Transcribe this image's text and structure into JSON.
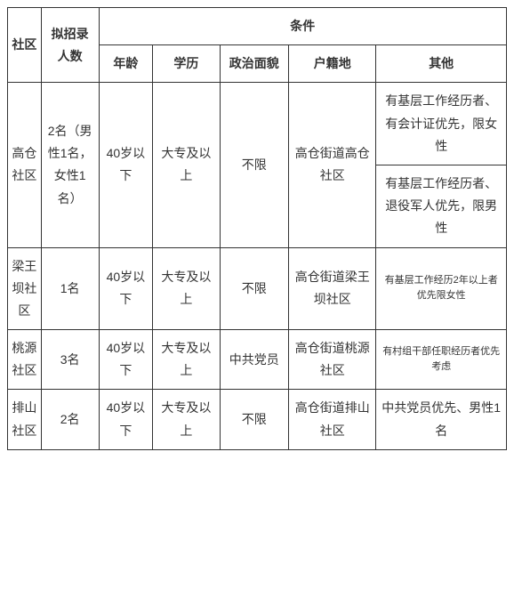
{
  "headers": {
    "community": "社区",
    "count": "拟招录人数",
    "conditions": "条件",
    "age": "年龄",
    "education": "学历",
    "political": "政治面貌",
    "residence": "户籍地",
    "other": "其他"
  },
  "rows": [
    {
      "community": "高仓社区",
      "count": "2名（男性1名，女性1名）",
      "age": "40岁以下",
      "education": "大专及以上",
      "political": "不限",
      "residence": "高仓街道高仓社区",
      "other1": "有基层工作经历者、有会计证优先，限女性",
      "other2": "有基层工作经历者、退役军人优先，限男性"
    },
    {
      "community": "梁王坝社区",
      "count": "1名",
      "age": "40岁以下",
      "education": "大专及以上",
      "political": "不限",
      "residence": "高仓街道梁王坝社区",
      "other": "有基层工作经历2年以上者优先限女性"
    },
    {
      "community": "桃源社区",
      "count": "3名",
      "age": "40岁以下",
      "education": "大专及以上",
      "political": "中共党员",
      "residence": "高仓街道桃源社区",
      "other": "有村组干部任职经历者优先考虑"
    },
    {
      "community": "排山社区",
      "count": "2名",
      "age": "40岁以下",
      "education": "大专及以上",
      "political": "不限",
      "residence": "高仓街道排山社区",
      "other": "中共党员优先、男性1名"
    }
  ]
}
